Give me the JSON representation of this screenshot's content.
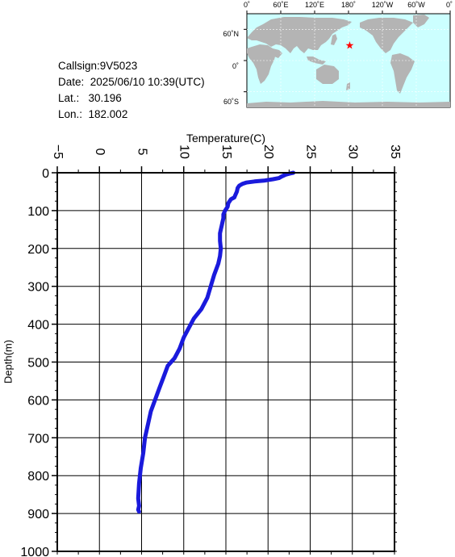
{
  "info": {
    "callsign": "Callsign:9V5023",
    "date": "Date:  2025/06/10 10:39(UTC)",
    "lat": "Lat.:   30.196",
    "lon": "Lon.:  182.002"
  },
  "map": {
    "top_labels": [
      "0˚",
      "60˚E",
      "120˚E",
      "180˚",
      "120˚W",
      "60˚W",
      "0˚"
    ],
    "left_labels": [
      "60˚N",
      "0˚",
      "60˚S"
    ],
    "ocean_color": "#ccffff",
    "land_color": "#b4b4b4",
    "marker_color": "#ff0000",
    "marker": {
      "lon": 182.002,
      "lat": 30.196
    }
  },
  "chart_data": {
    "type": "line",
    "xlabel": "Temperature(C)",
    "ylabel": "Depth(m)",
    "xlim": [
      -5,
      35
    ],
    "ylim": [
      0,
      1000
    ],
    "y_inverted": true,
    "x_ticks": [
      "−5",
      "0",
      "5",
      "10",
      "15",
      "20",
      "25",
      "30",
      "35"
    ],
    "y_ticks": [
      "0",
      "100",
      "200",
      "300",
      "400",
      "500",
      "600",
      "700",
      "800",
      "900",
      "1000"
    ],
    "grid": true,
    "line_color": "#1a1adc",
    "series": [
      {
        "points": [
          [
            23.0,
            0
          ],
          [
            22.6,
            2
          ],
          [
            22.1,
            5
          ],
          [
            21.6,
            10
          ],
          [
            21.3,
            14
          ],
          [
            20.6,
            17
          ],
          [
            19.5,
            21
          ],
          [
            18.4,
            23
          ],
          [
            17.4,
            26
          ],
          [
            17.0,
            29
          ],
          [
            16.6,
            34
          ],
          [
            16.4,
            40
          ],
          [
            16.3,
            50
          ],
          [
            16.1,
            60
          ],
          [
            16.0,
            65
          ],
          [
            15.6,
            70
          ],
          [
            15.3,
            80
          ],
          [
            15.2,
            90
          ],
          [
            14.9,
            100
          ],
          [
            14.7,
            110
          ],
          [
            14.7,
            120
          ],
          [
            14.6,
            130
          ],
          [
            14.5,
            140
          ],
          [
            14.4,
            150
          ],
          [
            14.3,
            160
          ],
          [
            14.3,
            180
          ],
          [
            14.4,
            200
          ],
          [
            14.3,
            220
          ],
          [
            14.1,
            240
          ],
          [
            13.6,
            270
          ],
          [
            13.2,
            300
          ],
          [
            12.8,
            330
          ],
          [
            12.1,
            360
          ],
          [
            11.2,
            385
          ],
          [
            10.6,
            410
          ],
          [
            10.0,
            435
          ],
          [
            9.5,
            465
          ],
          [
            8.9,
            490
          ],
          [
            8.1,
            510
          ],
          [
            7.6,
            540
          ],
          [
            7.1,
            570
          ],
          [
            6.6,
            600
          ],
          [
            6.1,
            630
          ],
          [
            5.8,
            660
          ],
          [
            5.4,
            700
          ],
          [
            5.2,
            740
          ],
          [
            4.9,
            780
          ],
          [
            4.7,
            820
          ],
          [
            4.6,
            860
          ],
          [
            4.7,
            880
          ],
          [
            4.6,
            890
          ],
          [
            4.7,
            895
          ]
        ]
      }
    ]
  }
}
